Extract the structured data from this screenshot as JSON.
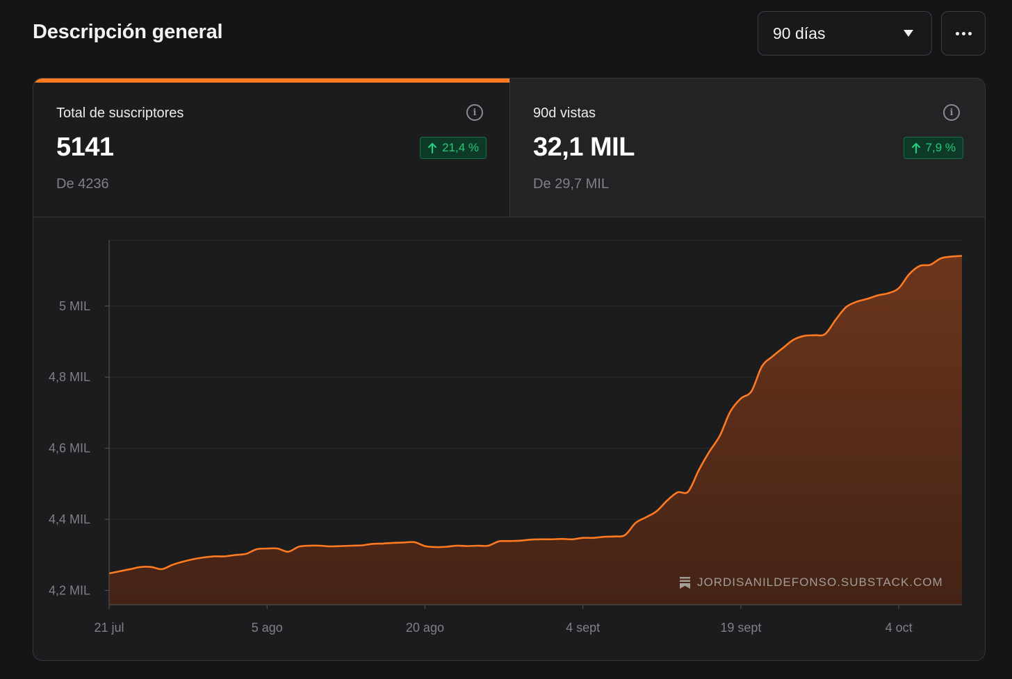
{
  "header": {
    "title": "Descripción general",
    "period_label": "90 días",
    "more_label": "Más opciones"
  },
  "metrics": [
    {
      "name": "Total de suscriptores",
      "value": "5141",
      "previous": "De 4236",
      "change": "21,4 %"
    },
    {
      "name": "90d vistas",
      "value": "32,1 MIL",
      "previous": "De 29,7 MIL",
      "change": "7,9 %"
    }
  ],
  "colors": {
    "accent": "#ff7a21",
    "positive": "#27c97a"
  },
  "watermark": "JORDISANILDEFONSO.SUBSTACK.COM",
  "chart_data": {
    "type": "area",
    "title": "",
    "xlabel": "",
    "ylabel": "",
    "ylim": [
      4160,
      5185
    ],
    "grid": true,
    "legend": "none",
    "y_ticks": [
      {
        "value": 4200,
        "label": "4,2 MIL"
      },
      {
        "value": 4400,
        "label": "4,4 MIL"
      },
      {
        "value": 4600,
        "label": "4,6 MIL"
      },
      {
        "value": 4800,
        "label": "4,8 MIL"
      },
      {
        "value": 5000,
        "label": "5 MIL"
      }
    ],
    "x_ticks": [
      {
        "value": "2024-07-21",
        "label": "21 jul"
      },
      {
        "value": "2024-08-05",
        "label": "5 ago"
      },
      {
        "value": "2024-08-20",
        "label": "20 ago"
      },
      {
        "value": "2024-09-04",
        "label": "4 sept"
      },
      {
        "value": "2024-09-19",
        "label": "19 sept"
      },
      {
        "value": "2024-10-04",
        "label": "4 oct"
      }
    ],
    "series": [
      {
        "points": [
          [
            "2024-07-21",
            4248
          ],
          [
            "2024-07-22",
            4254
          ],
          [
            "2024-07-23",
            4260
          ],
          [
            "2024-07-24",
            4266
          ],
          [
            "2024-07-25",
            4266
          ],
          [
            "2024-07-26",
            4260
          ],
          [
            "2024-07-27",
            4272
          ],
          [
            "2024-07-28",
            4281
          ],
          [
            "2024-07-29",
            4288
          ],
          [
            "2024-07-30",
            4293
          ],
          [
            "2024-07-31",
            4296
          ],
          [
            "2024-08-01",
            4296
          ],
          [
            "2024-08-02",
            4300
          ],
          [
            "2024-08-03",
            4303
          ],
          [
            "2024-08-04",
            4316
          ],
          [
            "2024-08-05",
            4318
          ],
          [
            "2024-08-06",
            4318
          ],
          [
            "2024-08-07",
            4309
          ],
          [
            "2024-08-08",
            4323
          ],
          [
            "2024-08-09",
            4326
          ],
          [
            "2024-08-10",
            4326
          ],
          [
            "2024-08-11",
            4324
          ],
          [
            "2024-08-12",
            4325
          ],
          [
            "2024-08-13",
            4326
          ],
          [
            "2024-08-14",
            4327
          ],
          [
            "2024-08-15",
            4331
          ],
          [
            "2024-08-16",
            4332
          ],
          [
            "2024-08-17",
            4334
          ],
          [
            "2024-08-18",
            4335
          ],
          [
            "2024-08-19",
            4336
          ],
          [
            "2024-08-20",
            4325
          ],
          [
            "2024-08-21",
            4322
          ],
          [
            "2024-08-22",
            4323
          ],
          [
            "2024-08-23",
            4326
          ],
          [
            "2024-08-24",
            4325
          ],
          [
            "2024-08-25",
            4326
          ],
          [
            "2024-08-26",
            4326
          ],
          [
            "2024-08-27",
            4338
          ],
          [
            "2024-08-28",
            4339
          ],
          [
            "2024-08-29",
            4340
          ],
          [
            "2024-08-30",
            4343
          ],
          [
            "2024-08-31",
            4344
          ],
          [
            "2024-09-01",
            4344
          ],
          [
            "2024-09-02",
            4345
          ],
          [
            "2024-09-03",
            4344
          ],
          [
            "2024-09-04",
            4348
          ],
          [
            "2024-09-05",
            4348
          ],
          [
            "2024-09-06",
            4351
          ],
          [
            "2024-09-07",
            4352
          ],
          [
            "2024-09-08",
            4356
          ],
          [
            "2024-09-09",
            4390
          ],
          [
            "2024-09-10",
            4406
          ],
          [
            "2024-09-11",
            4423
          ],
          [
            "2024-09-12",
            4453
          ],
          [
            "2024-09-13",
            4476
          ],
          [
            "2024-09-14",
            4478
          ],
          [
            "2024-09-15",
            4538
          ],
          [
            "2024-09-16",
            4590
          ],
          [
            "2024-09-17",
            4635
          ],
          [
            "2024-09-18",
            4703
          ],
          [
            "2024-09-19",
            4740
          ],
          [
            "2024-09-20",
            4760
          ],
          [
            "2024-09-21",
            4830
          ],
          [
            "2024-09-22",
            4858
          ],
          [
            "2024-09-23",
            4882
          ],
          [
            "2024-09-24",
            4905
          ],
          [
            "2024-09-25",
            4916
          ],
          [
            "2024-09-26",
            4918
          ],
          [
            "2024-09-27",
            4921
          ],
          [
            "2024-09-28",
            4961
          ],
          [
            "2024-09-29",
            4997
          ],
          [
            "2024-09-30",
            5012
          ],
          [
            "2024-10-01",
            5020
          ],
          [
            "2024-10-02",
            5030
          ],
          [
            "2024-10-03",
            5036
          ],
          [
            "2024-10-04",
            5050
          ],
          [
            "2024-10-05",
            5090
          ],
          [
            "2024-10-06",
            5113
          ],
          [
            "2024-10-07",
            5116
          ],
          [
            "2024-10-08",
            5134
          ],
          [
            "2024-10-09",
            5139
          ],
          [
            "2024-10-10",
            5141
          ]
        ]
      }
    ]
  }
}
